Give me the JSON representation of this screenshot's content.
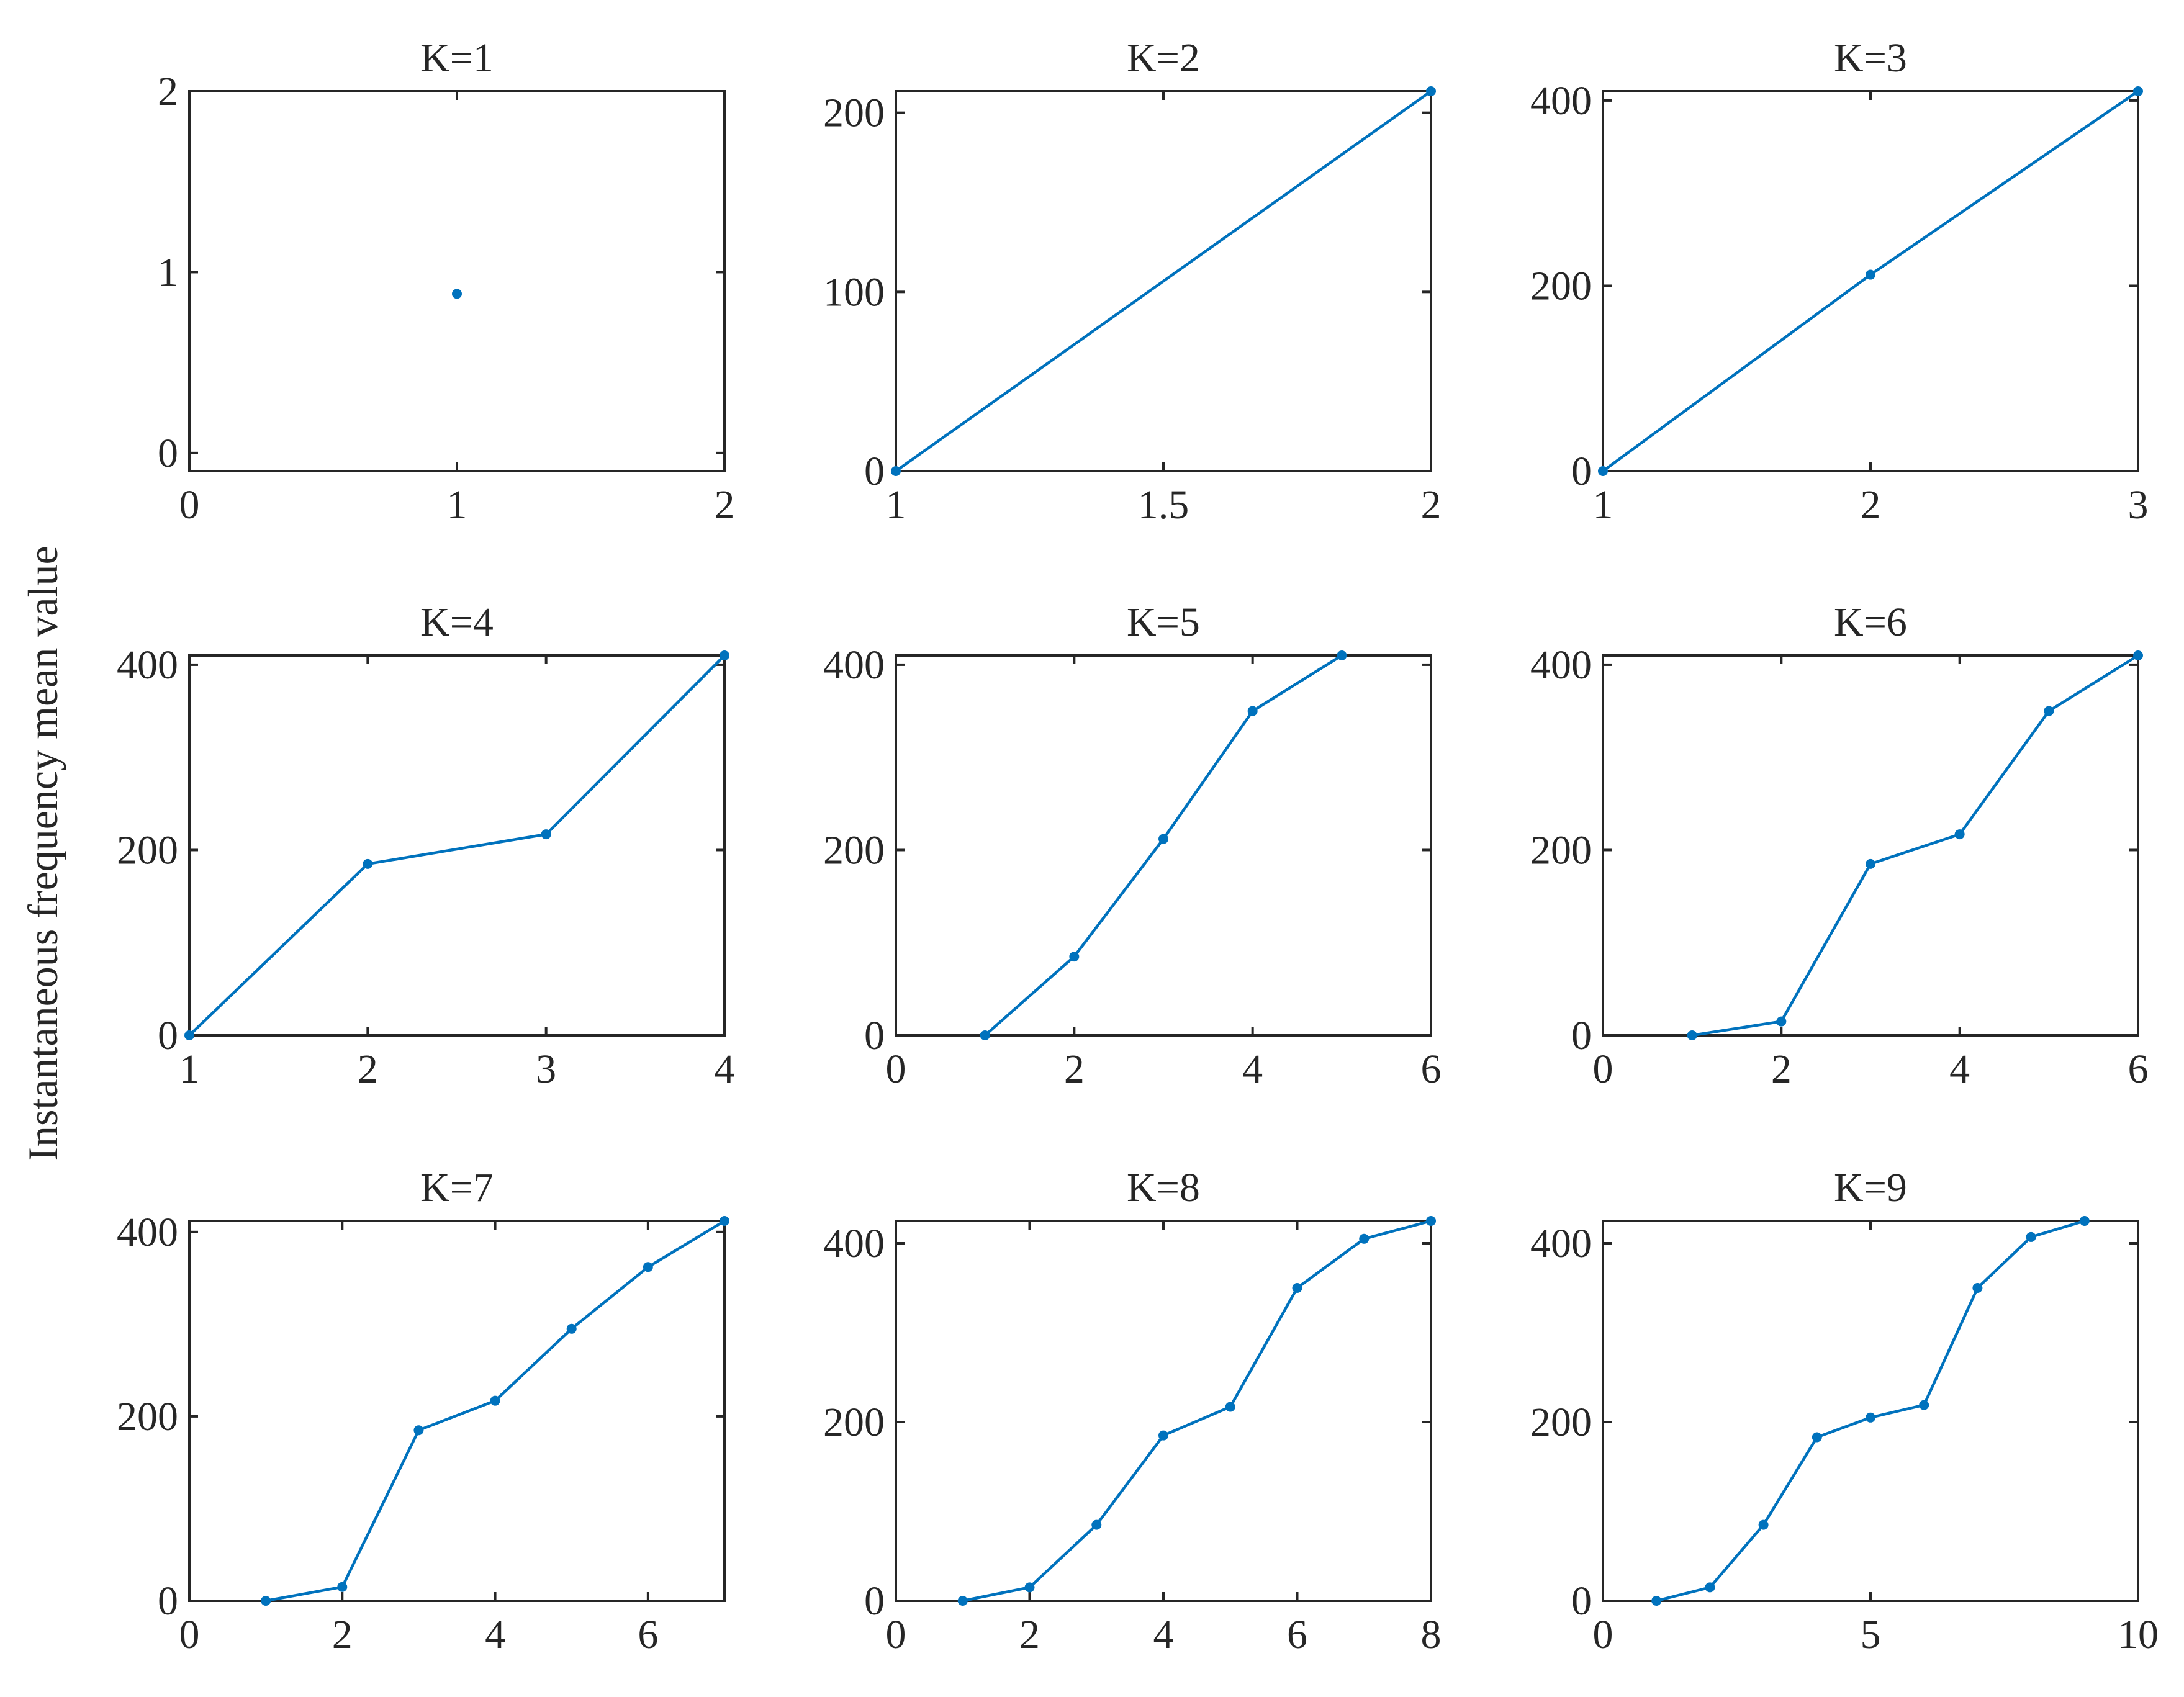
{
  "figure": {
    "ylabel": "Instantaneous frequency mean value",
    "series_color": "#0072bd",
    "axis_color": "#262626"
  },
  "chart_data": [
    {
      "type": "line",
      "title": "K=1",
      "xlim": [
        0,
        2
      ],
      "ylim": [
        -0.1,
        2
      ],
      "xticks": [
        0,
        1,
        2
      ],
      "xtick_labels": [
        "0",
        "1",
        "2"
      ],
      "yticks": [
        0,
        1,
        2
      ],
      "ytick_labels": [
        "0",
        "1",
        "2"
      ],
      "x": [
        1
      ],
      "y": [
        0.88
      ]
    },
    {
      "type": "line",
      "title": "K=2",
      "xlim": [
        1,
        2
      ],
      "ylim": [
        0,
        212
      ],
      "xticks": [
        1,
        1.5,
        2
      ],
      "xtick_labels": [
        "1",
        "1.5",
        "2"
      ],
      "yticks": [
        0,
        100,
        200
      ],
      "ytick_labels": [
        "0",
        "100",
        "200"
      ],
      "x": [
        1,
        2
      ],
      "y": [
        0,
        212
      ]
    },
    {
      "type": "line",
      "title": "K=3",
      "xlim": [
        1,
        3
      ],
      "ylim": [
        0,
        410
      ],
      "xticks": [
        1,
        2,
        3
      ],
      "xtick_labels": [
        "1",
        "2",
        "3"
      ],
      "yticks": [
        0,
        200,
        400
      ],
      "ytick_labels": [
        "0",
        "200",
        "400"
      ],
      "x": [
        1,
        2,
        3
      ],
      "y": [
        0,
        212,
        410
      ]
    },
    {
      "type": "line",
      "title": "K=4",
      "xlim": [
        1,
        4
      ],
      "ylim": [
        0,
        410
      ],
      "xticks": [
        1,
        2,
        3,
        4
      ],
      "xtick_labels": [
        "1",
        "2",
        "3",
        "4"
      ],
      "yticks": [
        0,
        200,
        400
      ],
      "ytick_labels": [
        "0",
        "200",
        "400"
      ],
      "x": [
        1,
        2,
        3,
        4
      ],
      "y": [
        0,
        185,
        217,
        410
      ]
    },
    {
      "type": "line",
      "title": "K=5",
      "xlim": [
        0,
        6
      ],
      "ylim": [
        0,
        410
      ],
      "xticks": [
        0,
        2,
        4,
        6
      ],
      "xtick_labels": [
        "0",
        "2",
        "4",
        "6"
      ],
      "yticks": [
        0,
        200,
        400
      ],
      "ytick_labels": [
        "0",
        "200",
        "400"
      ],
      "x": [
        1,
        2,
        3,
        4,
        5
      ],
      "y": [
        0,
        85,
        212,
        350,
        410
      ]
    },
    {
      "type": "line",
      "title": "K=6",
      "xlim": [
        0,
        6
      ],
      "ylim": [
        0,
        410
      ],
      "xticks": [
        0,
        2,
        4,
        6
      ],
      "xtick_labels": [
        "0",
        "2",
        "4",
        "6"
      ],
      "yticks": [
        0,
        200,
        400
      ],
      "ytick_labels": [
        "0",
        "200",
        "400"
      ],
      "x": [
        1,
        2,
        3,
        4,
        5,
        6
      ],
      "y": [
        0,
        15,
        185,
        217,
        350,
        410
      ]
    },
    {
      "type": "line",
      "title": "K=7",
      "xlim": [
        0,
        7
      ],
      "ylim": [
        0,
        412
      ],
      "xticks": [
        0,
        2,
        4,
        6
      ],
      "xtick_labels": [
        "0",
        "2",
        "4",
        "6"
      ],
      "yticks": [
        0,
        200,
        400
      ],
      "ytick_labels": [
        "0",
        "200",
        "400"
      ],
      "x": [
        1,
        2,
        3,
        4,
        5,
        6,
        7
      ],
      "y": [
        0,
        15,
        185,
        217,
        295,
        362,
        412
      ]
    },
    {
      "type": "line",
      "title": "K=8",
      "xlim": [
        0,
        8
      ],
      "ylim": [
        0,
        425
      ],
      "xticks": [
        0,
        2,
        4,
        6,
        8
      ],
      "xtick_labels": [
        "0",
        "2",
        "4",
        "6",
        "8"
      ],
      "yticks": [
        0,
        200,
        400
      ],
      "ytick_labels": [
        "0",
        "200",
        "400"
      ],
      "x": [
        1,
        2,
        3,
        4,
        5,
        6,
        7,
        8
      ],
      "y": [
        0,
        15,
        85,
        185,
        217,
        350,
        405,
        425
      ]
    },
    {
      "type": "line",
      "title": "K=9",
      "xlim": [
        0,
        10
      ],
      "ylim": [
        0,
        425
      ],
      "xticks": [
        0,
        5,
        10
      ],
      "xtick_labels": [
        "0",
        "5",
        "10"
      ],
      "yticks": [
        0,
        200,
        400
      ],
      "ytick_labels": [
        "0",
        "200",
        "400"
      ],
      "x": [
        1,
        2,
        3,
        4,
        5,
        6,
        7,
        8,
        9
      ],
      "y": [
        0,
        15,
        85,
        183,
        205,
        219,
        350,
        407,
        425
      ]
    }
  ]
}
